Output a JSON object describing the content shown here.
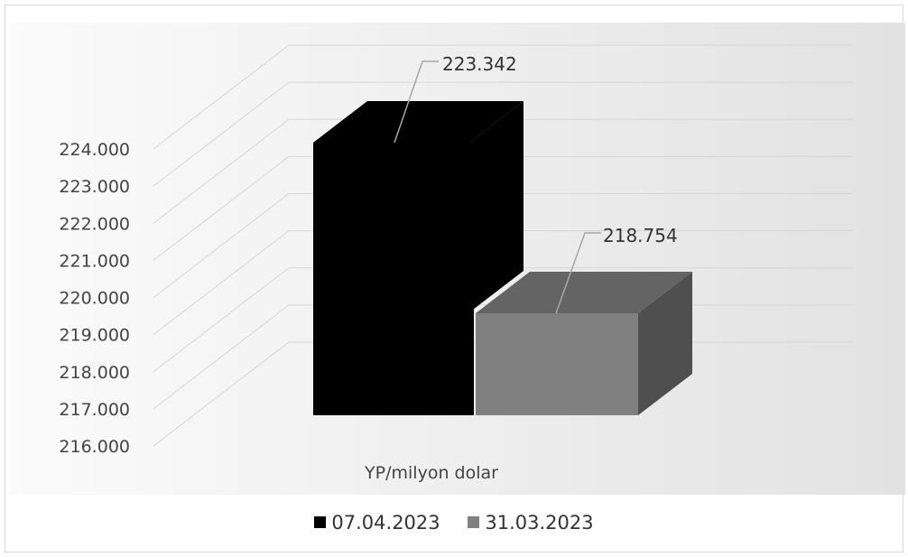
{
  "chart_data": {
    "type": "bar",
    "three_d": true,
    "title": "",
    "xlabel": "",
    "ylabel": "",
    "categories": [
      "YP/milyon dolar"
    ],
    "series": [
      {
        "name": "07.04.2023",
        "values": [
          223342
        ],
        "value_label": "223.342",
        "color": "#000000"
      },
      {
        "name": "31.03.2023",
        "values": [
          218754
        ],
        "value_label": "218.754",
        "color": "#808080"
      }
    ],
    "ylim": [
      216000,
      224000
    ],
    "yticks": [
      216000,
      217000,
      218000,
      219000,
      220000,
      221000,
      222000,
      223000,
      224000
    ],
    "ytick_labels": [
      "216.000",
      "217.000",
      "218.000",
      "219.000",
      "220.000",
      "221.000",
      "222.000",
      "223.000",
      "224.000"
    ],
    "grid": true,
    "legend_position": "bottom"
  }
}
